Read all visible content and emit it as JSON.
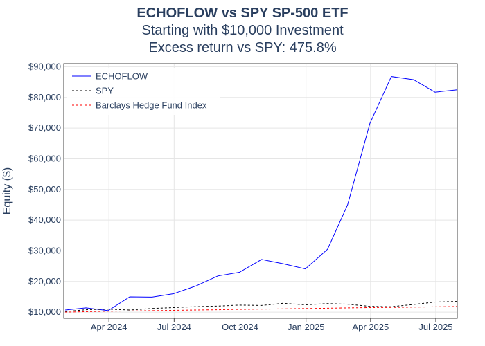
{
  "chart_data": {
    "type": "line",
    "title": "ECHOFLOW vs SPY SP-500 ETF",
    "subtitle": "Starting with $10,000 Investment",
    "subtitle2": "Excess return vs SPY: 475.8%",
    "xlabel": "",
    "ylabel": "Equity ($)",
    "x_tick_labels": [
      "Apr 2024",
      "Jul 2024",
      "Oct 2024",
      "Jan 2025",
      "Apr 2025",
      "Jul 2025"
    ],
    "y_tick_labels": [
      "$10,000",
      "$20,000",
      "$30,000",
      "$40,000",
      "$50,000",
      "$60,000",
      "$70,000",
      "$80,000",
      "$90,000"
    ],
    "ylim": [
      8000,
      91000
    ],
    "x_range": [
      "2024-01-29",
      "2025-07-31"
    ],
    "grid": true,
    "legend_position": "top-left",
    "x": [
      "2024-01-31",
      "2024-02-29",
      "2024-03-31",
      "2024-04-30",
      "2024-05-31",
      "2024-06-30",
      "2024-07-31",
      "2024-08-31",
      "2024-09-30",
      "2024-10-31",
      "2024-11-30",
      "2024-12-31",
      "2025-01-31",
      "2025-02-28",
      "2025-03-31",
      "2025-04-30",
      "2025-05-31",
      "2025-06-30",
      "2025-07-31"
    ],
    "series": [
      {
        "name": "ECHOFLOW",
        "color": "#0000ff",
        "dash": "solid",
        "values": [
          10700,
          11400,
          10500,
          15000,
          14900,
          16000,
          18500,
          21800,
          23000,
          27200,
          25800,
          24100,
          30500,
          45000,
          71500,
          86800,
          85800,
          81700,
          82500
        ]
      },
      {
        "name": "SPY",
        "color": "#000000",
        "dash": "dot",
        "values": [
          10200,
          10800,
          11000,
          10700,
          11200,
          11500,
          11800,
          12000,
          12300,
          12200,
          12900,
          12400,
          12800,
          12600,
          11900,
          11800,
          12500,
          13300,
          13500
        ]
      },
      {
        "name": "Barclays Hedge Fund Index",
        "color": "#ff0000",
        "dash": "dot",
        "values": [
          10000,
          10150,
          10300,
          10400,
          10500,
          10600,
          10700,
          10800,
          10900,
          11000,
          11100,
          11200,
          11300,
          11400,
          11500,
          11550,
          11650,
          11750,
          11850
        ]
      }
    ]
  }
}
